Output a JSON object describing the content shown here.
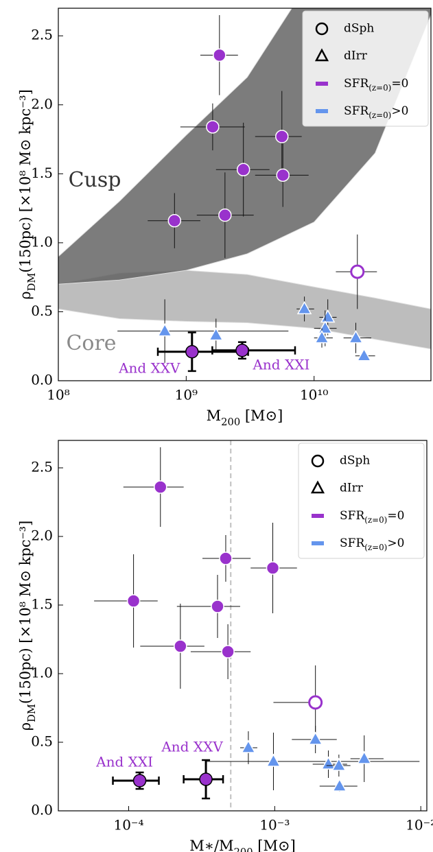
{
  "chart_data": [
    {
      "type": "scatter",
      "xscale": "log",
      "x_label": {
        "text": "M",
        "sub": "200",
        "rest": " [M⊙]"
      },
      "y_label": {
        "text": "ρ",
        "sub": "DM",
        "rest": "(150pc) [×10⁸ M⊙ kpc⁻³]"
      },
      "xlim": [
        100000000.0,
        82000000000.0
      ],
      "ylim": [
        0,
        2.7
      ],
      "xticks": [
        {
          "value": 100000000.0,
          "label": "10⁸"
        },
        {
          "value": 1000000000.0,
          "label": "10⁹"
        },
        {
          "value": 10000000000.0,
          "label": "10¹⁰"
        }
      ],
      "yticks": [
        {
          "value": 0,
          "label": "0.0"
        },
        0.5,
        {
          "value": 1,
          "label": "1.0"
        },
        1.5,
        {
          "value": 2,
          "label": "2.0"
        },
        2.5
      ],
      "bands": [
        {
          "label": "Core",
          "color": "#bdbdbd",
          "text_color": "#8a8a8a",
          "x": [
            100000000.0,
            300000000.0,
            1000000000.0,
            3000000000.0,
            10000000000.0,
            30000000000.0,
            82000000000.0
          ],
          "upper": [
            0.7,
            0.78,
            0.8,
            0.77,
            0.68,
            0.6,
            0.52
          ],
          "lower": [
            0.52,
            0.45,
            0.43,
            0.42,
            0.38,
            0.3,
            0.23
          ]
        },
        {
          "label": "Cusp",
          "color": "#5f5f5f",
          "text_color": "#333333",
          "x": [
            100000000.0,
            300000000.0,
            1000000000.0,
            3000000000.0,
            10000000000.0,
            30000000000.0,
            82000000000.0
          ],
          "upper": [
            0.9,
            1.3,
            1.78,
            2.2,
            2.95,
            3.6,
            4.2
          ],
          "lower": [
            0.7,
            0.73,
            0.8,
            0.92,
            1.15,
            1.65,
            2.65
          ]
        }
      ],
      "series": [
        {
          "marker": "circle",
          "color": "#9932cc",
          "filled": true,
          "x": [
            1820000000.0,
            1610000000.0,
            5600000000.0,
            2800000000.0,
            5700000000.0,
            810000000.0,
            2010000000.0
          ],
          "values": [
            2.36,
            1.84,
            1.77,
            1.53,
            1.49,
            1.16,
            1.2
          ],
          "x_low": [
            1290000000.0,
            900000000.0,
            3460000000.0,
            1710000000.0,
            3460000000.0,
            500000000.0,
            1210000000.0
          ],
          "x_high": [
            2540000000.0,
            2870000000.0,
            8000000000.0,
            4480000000.0,
            9060000000.0,
            1290000000.0,
            3370000000.0
          ],
          "y_err": [
            0.29,
            0.17,
            0.33,
            0.34,
            0.23,
            0.2,
            0.31
          ]
        },
        {
          "marker": "circle",
          "color": "#9932cc",
          "filled": false,
          "x": [
            21800000000.0
          ],
          "values": [
            0.79
          ],
          "x_low": [
            14800000000.0
          ],
          "x_high": [
            31000000000.0
          ],
          "y_err": [
            0.27
          ]
        },
        {
          "marker": "circle",
          "color": "#9932cc",
          "filled": true,
          "edgecolor": "#000000",
          "bold_errors": true,
          "x": [
            1110000000.0,
            2740000000.0
          ],
          "values": [
            0.21,
            0.22
          ],
          "x_low": [
            600000000.0,
            1600000000.0
          ],
          "x_high": [
            3050000000.0,
            7100000000.0
          ],
          "y_err": [
            0.14,
            0.06
          ],
          "labels": [
            "And XXV",
            "And XXI"
          ]
        },
        {
          "marker": "triangle",
          "color": "#6495ed",
          "filled": true,
          "x": [
            680000000.0,
            1710000000.0,
            8400000000.0,
            12800000000.0,
            12200000000.0,
            11500000000.0,
            21200000000.0,
            24600000000.0
          ],
          "values": [
            0.36,
            0.33,
            0.52,
            0.46,
            0.38,
            0.31,
            0.31,
            0.18
          ],
          "x_low": [
            290000000.0,
            1600000000.0,
            7300000000.0,
            11000000000.0,
            10000000000.0,
            10000000000.0,
            17000000000.0,
            21000000000.0
          ],
          "x_high": [
            6300000000.0,
            1850000000.0,
            10000000000.0,
            15000000000.0,
            15000000000.0,
            14000000000.0,
            28000000000.0,
            30000000000.0
          ],
          "y_err": [
            0.23,
            0.12,
            0.09,
            0.13,
            0.13,
            0.07,
            0.11,
            0.03
          ]
        }
      ],
      "legend": {
        "position": "upper right",
        "entries": [
          {
            "label": "dSph",
            "marker": "circle"
          },
          {
            "label": "dIrr",
            "marker": "triangle"
          },
          {
            "label": {
              "text": "SFR",
              "sub": "(z=0)",
              "rest": "=0"
            },
            "marker": "bar",
            "color": "#9932cc"
          },
          {
            "label": {
              "text": "SFR",
              "sub": "(z=0)",
              "rest": ">0"
            },
            "marker": "bar",
            "color": "#6495ed"
          }
        ]
      }
    },
    {
      "type": "scatter",
      "xscale": "log",
      "x_label": {
        "text": "M∗/M",
        "sub": "200",
        "rest": " [M⊙]"
      },
      "y_label": {
        "text": "ρ",
        "sub": "DM",
        "rest": "(150pc) [×10⁸ M⊙ kpc⁻³]"
      },
      "xlim": [
        3.3e-05,
        0.011
      ],
      "ylim": [
        0,
        2.7
      ],
      "xticks": [
        {
          "value": 0.0001,
          "label": "10⁻⁴"
        },
        {
          "value": 0.001,
          "label": "10⁻³"
        },
        {
          "value": 0.01,
          "label": "10⁻²"
        }
      ],
      "yticks": [
        {
          "value": 0,
          "label": "0.0"
        },
        0.5,
        {
          "value": 1,
          "label": "1.0"
        },
        1.5,
        {
          "value": 2,
          "label": "2.0"
        },
        2.5
      ],
      "vline": 0.0005,
      "series": [
        {
          "marker": "circle",
          "color": "#9932cc",
          "filled": true,
          "x": [
            0.000165,
            0.000462,
            0.00097,
            0.000108,
            0.000406,
            0.000226,
            0.000478
          ],
          "values": [
            2.36,
            1.84,
            1.77,
            1.53,
            1.49,
            1.2,
            1.16
          ],
          "x_low": [
            9.2e-05,
            0.00032,
            0.000684,
            5.8e-05,
            0.000214,
            0.00012,
            0.000266
          ],
          "x_high": [
            0.000238,
            0.000684,
            0.00142,
            0.000158,
            0.00058,
            0.00033,
            0.000684
          ],
          "y_err": [
            0.29,
            0.17,
            0.33,
            0.34,
            0.23,
            0.31,
            0.2
          ]
        },
        {
          "marker": "circle",
          "color": "#9932cc",
          "filled": false,
          "x": [
            0.0019
          ],
          "values": [
            0.79
          ],
          "x_low": [
            0.00098
          ],
          "x_high": [
            0.0021
          ],
          "y_err": [
            0.27
          ]
        },
        {
          "marker": "circle",
          "color": "#9932cc",
          "filled": true,
          "edgecolor": "#000000",
          "bold_errors": true,
          "x": [
            0.000119,
            0.000338
          ],
          "values": [
            0.22,
            0.23
          ],
          "x_low": [
            7.8e-05,
            0.000238
          ],
          "x_high": [
            0.000161,
            0.000443
          ],
          "y_err": [
            0.06,
            0.14
          ],
          "labels": [
            "And XXI",
            "And XXV"
          ]
        },
        {
          "marker": "triangle",
          "color": "#6495ed",
          "filled": true,
          "x": [
            0.00066,
            0.00098,
            0.0019,
            0.00233,
            0.00275,
            0.00278,
            0.0041
          ],
          "values": [
            0.46,
            0.36,
            0.52,
            0.34,
            0.33,
            0.18,
            0.38
          ],
          "x_low": [
            0.00058,
            0.00034,
            0.00131,
            0.00182,
            0.00226,
            0.00203,
            0.0033
          ],
          "x_high": [
            0.00076,
            0.0098,
            0.00266,
            0.00313,
            0.0033,
            0.00368,
            0.00556
          ],
          "y_err": [
            0.12,
            0.21,
            0.1,
            0.1,
            0.08,
            0.04,
            0.17
          ]
        }
      ],
      "legend": {
        "position": "upper right",
        "entries": [
          {
            "label": "dSph",
            "marker": "circle"
          },
          {
            "label": "dIrr",
            "marker": "triangle"
          },
          {
            "label": {
              "text": "SFR",
              "sub": "(z=0)",
              "rest": "=0"
            },
            "marker": "bar",
            "color": "#9932cc"
          },
          {
            "label": {
              "text": "SFR",
              "sub": "(z=0)",
              "rest": ">0"
            },
            "marker": "bar",
            "color": "#6495ed"
          }
        ]
      }
    }
  ]
}
